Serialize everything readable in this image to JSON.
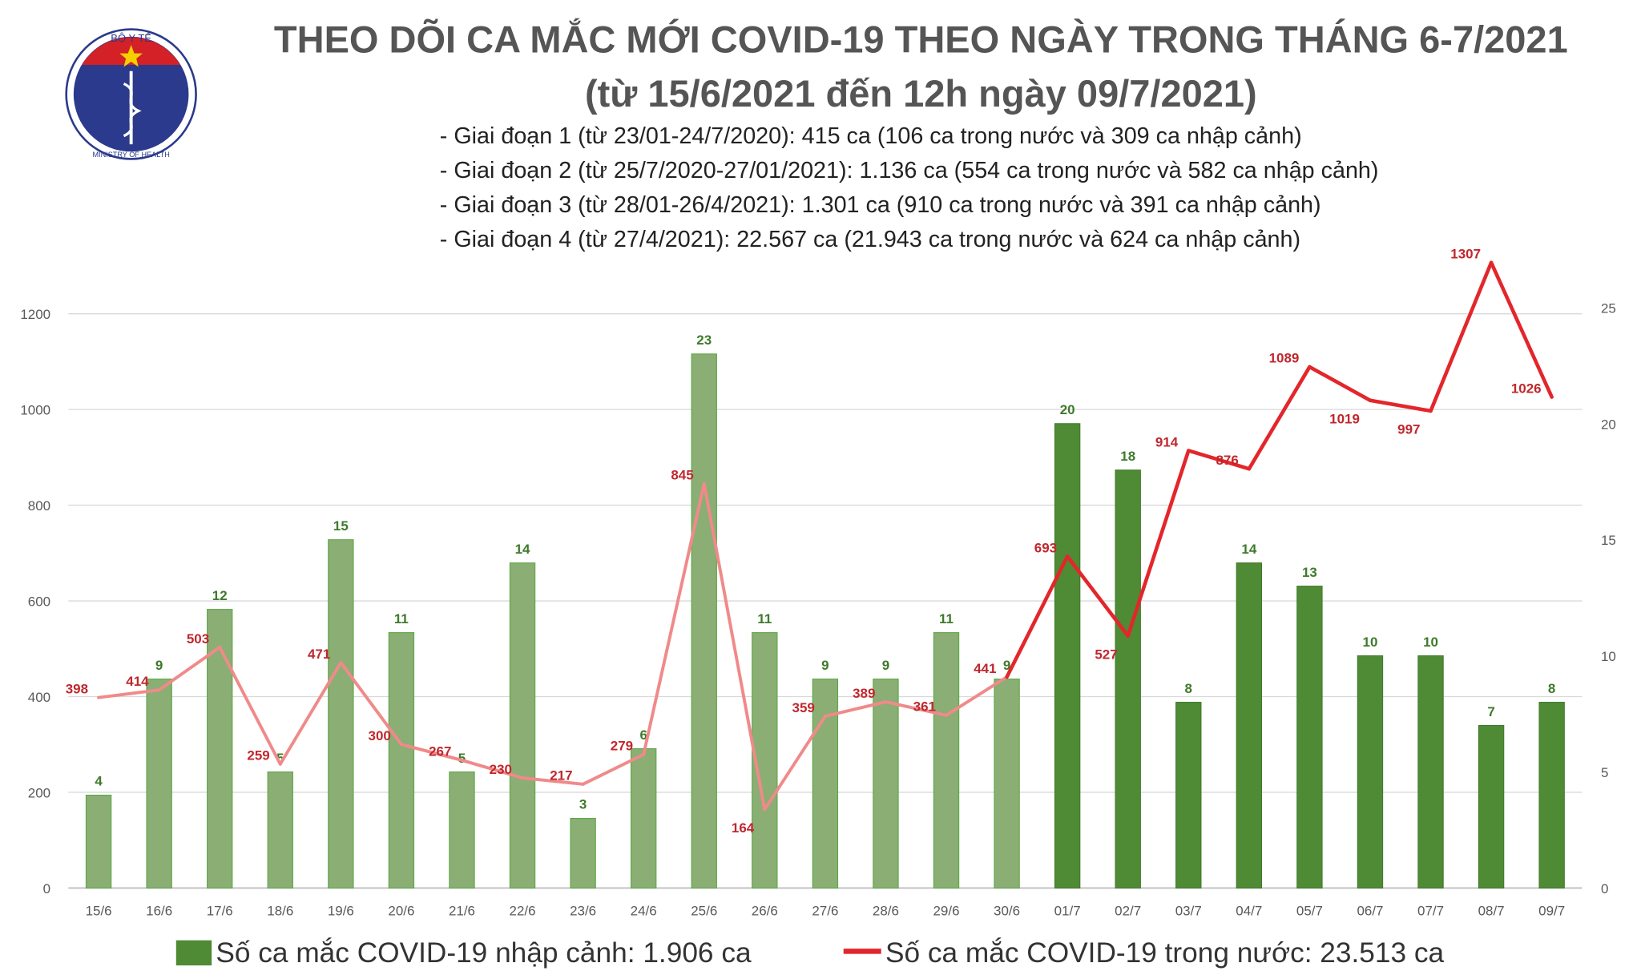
{
  "header": {
    "logo_text_top": "BỘ Y TẾ",
    "logo_text_bottom": "MINISTRY OF HEALTH",
    "title": "THEO DÕI CA MẮC MỚI COVID-19 THEO NGÀY TRONG THÁNG 6-7/2021",
    "subtitle": "(từ 15/6/2021 đến 12h ngày 09/7/2021)",
    "phases": [
      "- Giai đoạn 1 (từ 23/01-24/7/2020): 415 ca (106 ca trong nước và 309 ca nhập cảnh)",
      "- Giai đoạn 2 (từ 25/7/2020-27/01/2021): 1.136 ca (554 ca trong nước và 582 ca nhập cảnh)",
      "- Giai đoạn 3 (từ 28/01-26/4/2021): 1.301 ca (910 ca trong nước và 391 ca nhập cảnh)",
      "- Giai đoạn 4 (từ 27/4/2021): 22.567 ca (21.943 ca trong nước và 624 ca nhập cảnh)"
    ]
  },
  "chart_data": {
    "type": "bar+line",
    "categories": [
      "15/6",
      "16/6",
      "17/6",
      "18/6",
      "19/6",
      "20/6",
      "21/6",
      "22/6",
      "23/6",
      "24/6",
      "25/6",
      "26/6",
      "27/6",
      "28/6",
      "29/6",
      "30/6",
      "01/7",
      "02/7",
      "03/7",
      "04/7",
      "05/7",
      "06/7",
      "07/7",
      "08/7",
      "09/7"
    ],
    "series": [
      {
        "name": "Số ca mắc COVID-19 nhập cảnh: 1.906 ca",
        "type": "bar",
        "axis": "right",
        "values": [
          4,
          9,
          12,
          5,
          15,
          11,
          5,
          14,
          3,
          6,
          23,
          11,
          9,
          9,
          11,
          9,
          20,
          18,
          8,
          14,
          13,
          10,
          10,
          7,
          8
        ]
      },
      {
        "name": "Số ca mắc COVID-19 trong nước: 23.513 ca",
        "type": "line",
        "axis": "left",
        "values": [
          398,
          414,
          503,
          259,
          471,
          300,
          267,
          230,
          217,
          279,
          845,
          164,
          359,
          389,
          361,
          441,
          693,
          527,
          914,
          876,
          1089,
          1019,
          997,
          1307,
          1026
        ]
      }
    ],
    "y_left": {
      "range": [
        0,
        1200
      ],
      "ticks": [
        0,
        200,
        400,
        600,
        800,
        1000,
        1200
      ]
    },
    "y_right": {
      "range": [
        0,
        25
      ],
      "ticks": [
        0,
        5,
        10,
        15,
        20,
        25
      ]
    },
    "grid": true,
    "legend": "bottom",
    "colors": {
      "bar_june": "#8aae74",
      "bar_july": "#4f8a34",
      "line_june": "#f08a8a",
      "line_july": "#e3262b"
    }
  }
}
